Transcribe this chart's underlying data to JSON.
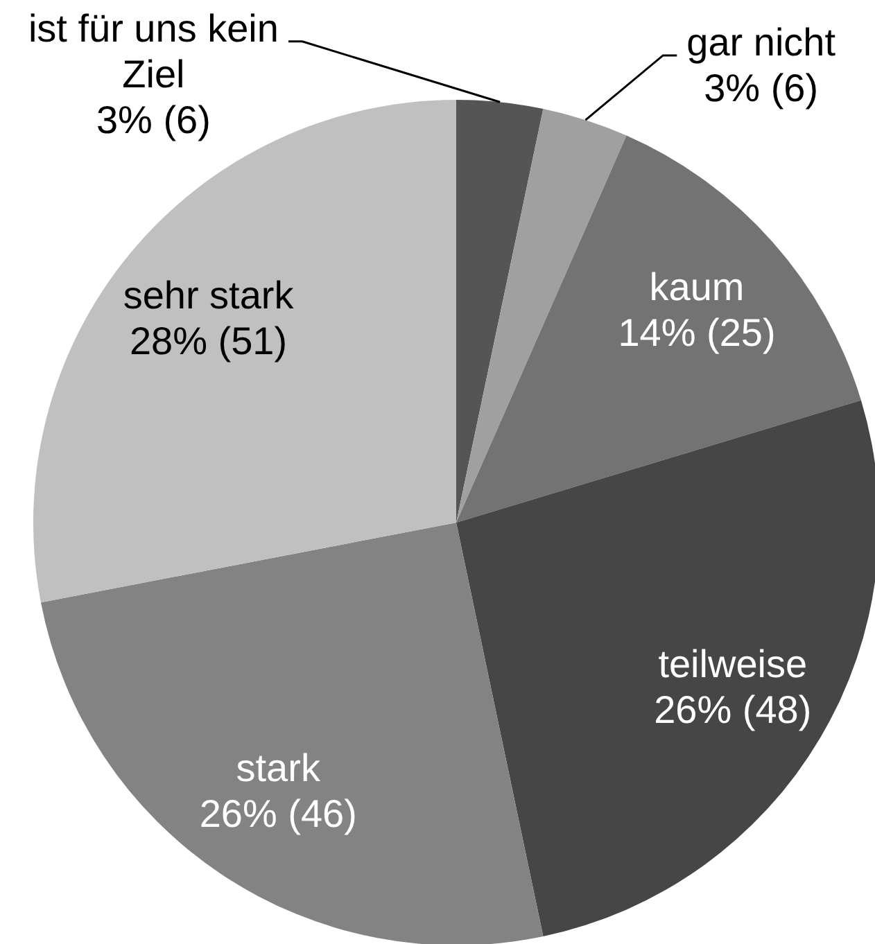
{
  "chart_data": {
    "type": "pie",
    "categories": [
      "ist für uns kein Ziel",
      "gar nicht",
      "kaum",
      "teilweise",
      "stark",
      "sehr stark"
    ],
    "values": [
      6,
      6,
      25,
      48,
      46,
      51
    ],
    "value_labels": [
      "3% (6)",
      "3% (6)",
      "14% (25)",
      "26% (48)",
      "26% (46)",
      "28% (51)"
    ],
    "colors": [
      "#555555",
      "#a0a0a0",
      "#737373",
      "#464646",
      "#838383",
      "#c0c0c0"
    ]
  }
}
